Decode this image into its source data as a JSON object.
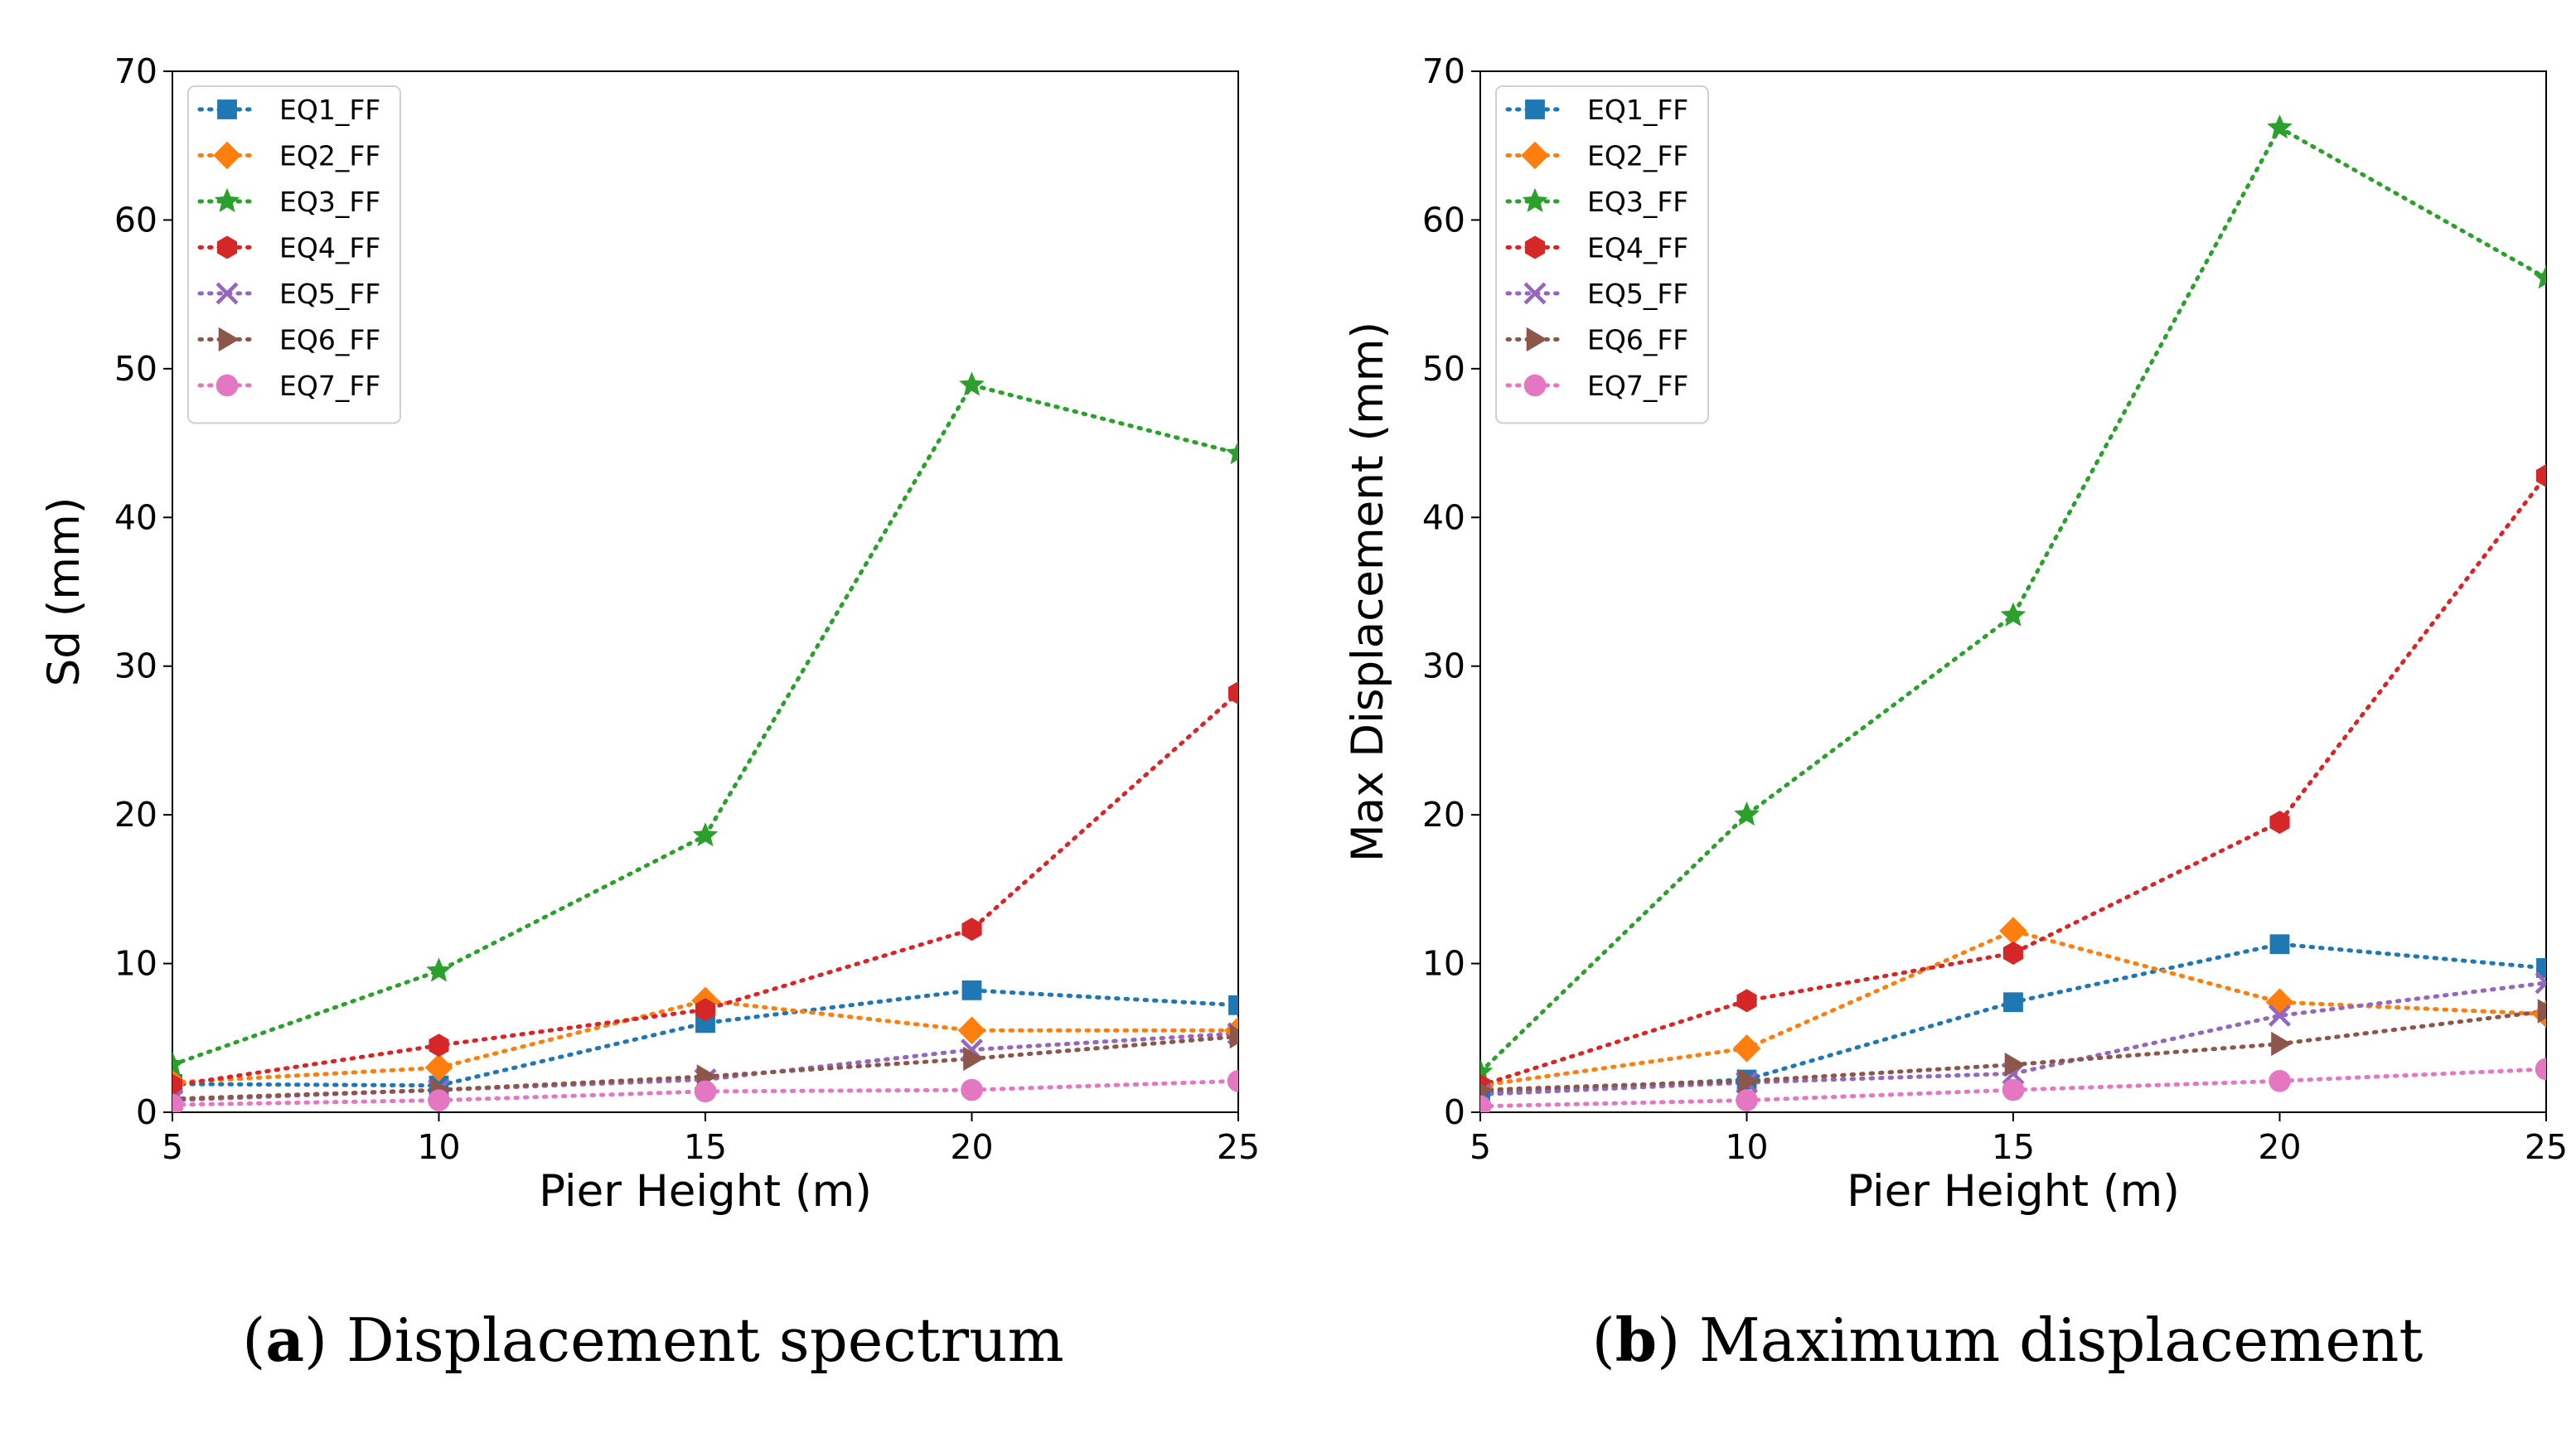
{
  "chart_data": [
    {
      "type": "line",
      "xlabel": "Pier Height (m)",
      "ylabel": "Sd (mm)",
      "xlim": [
        5,
        25
      ],
      "ylim": [
        0,
        70
      ],
      "xticks": [
        "5",
        "10",
        "15",
        "20",
        "25"
      ],
      "yticks": [
        "0",
        "10",
        "20",
        "30",
        "40",
        "50",
        "60",
        "70"
      ],
      "x": [
        5,
        10,
        15,
        20,
        25
      ],
      "grid": false,
      "legend_position": "top-left",
      "caption": {
        "label": "a",
        "text": " Displacement spectrum"
      },
      "series": [
        {
          "name": "EQ1_FF",
          "color": "#1f77b4",
          "marker": "square",
          "values": [
            1.9,
            1.8,
            6.0,
            8.2,
            7.2
          ]
        },
        {
          "name": "EQ2_FF",
          "color": "#ff7f0e",
          "marker": "diamond",
          "values": [
            2.0,
            3.0,
            7.5,
            5.5,
            5.5
          ]
        },
        {
          "name": "EQ3_FF",
          "color": "#2ca02c",
          "marker": "star",
          "values": [
            3.2,
            9.5,
            18.6,
            48.9,
            44.3
          ]
        },
        {
          "name": "EQ4_FF",
          "color": "#d62728",
          "marker": "hexagon",
          "values": [
            1.8,
            4.5,
            6.9,
            12.3,
            28.2
          ]
        },
        {
          "name": "EQ5_FF",
          "color": "#9467bd",
          "marker": "x",
          "values": [
            0.8,
            1.5,
            2.2,
            4.2,
            5.3
          ]
        },
        {
          "name": "EQ6_FF",
          "color": "#8c564b",
          "marker": "triangle-right",
          "values": [
            0.9,
            1.5,
            2.4,
            3.6,
            5.1
          ]
        },
        {
          "name": "EQ7_FF",
          "color": "#e377c2",
          "marker": "circle",
          "values": [
            0.5,
            0.8,
            1.4,
            1.5,
            2.1
          ]
        }
      ]
    },
    {
      "type": "line",
      "xlabel": "Pier Height (m)",
      "ylabel": "Max Displacement (mm)",
      "xlim": [
        5,
        25
      ],
      "ylim": [
        0,
        70
      ],
      "xticks": [
        "5",
        "10",
        "15",
        "20",
        "25"
      ],
      "yticks": [
        "0",
        "10",
        "20",
        "30",
        "40",
        "50",
        "60",
        "70"
      ],
      "x": [
        5,
        10,
        15,
        20,
        25
      ],
      "grid": false,
      "legend_position": "top-left",
      "caption": {
        "label": "b",
        "text": " Maximum displacement"
      },
      "series": [
        {
          "name": "EQ1_FF",
          "color": "#1f77b4",
          "marker": "square",
          "values": [
            1.3,
            2.2,
            7.4,
            11.3,
            9.7
          ]
        },
        {
          "name": "EQ2_FF",
          "color": "#ff7f0e",
          "marker": "diamond",
          "values": [
            1.8,
            4.3,
            12.2,
            7.4,
            6.6
          ]
        },
        {
          "name": "EQ3_FF",
          "color": "#2ca02c",
          "marker": "star",
          "values": [
            2.7,
            20.0,
            33.4,
            66.2,
            56.1
          ]
        },
        {
          "name": "EQ4_FF",
          "color": "#d62728",
          "marker": "hexagon",
          "values": [
            1.8,
            7.5,
            10.7,
            19.5,
            42.8
          ]
        },
        {
          "name": "EQ5_FF",
          "color": "#9467bd",
          "marker": "x",
          "values": [
            1.2,
            2.0,
            2.6,
            6.5,
            8.7
          ]
        },
        {
          "name": "EQ6_FF",
          "color": "#8c564b",
          "marker": "triangle-right",
          "values": [
            1.5,
            2.1,
            3.2,
            4.6,
            6.8
          ]
        },
        {
          "name": "EQ7_FF",
          "color": "#e377c2",
          "marker": "circle",
          "values": [
            0.4,
            0.8,
            1.5,
            2.1,
            2.9
          ]
        }
      ]
    }
  ]
}
